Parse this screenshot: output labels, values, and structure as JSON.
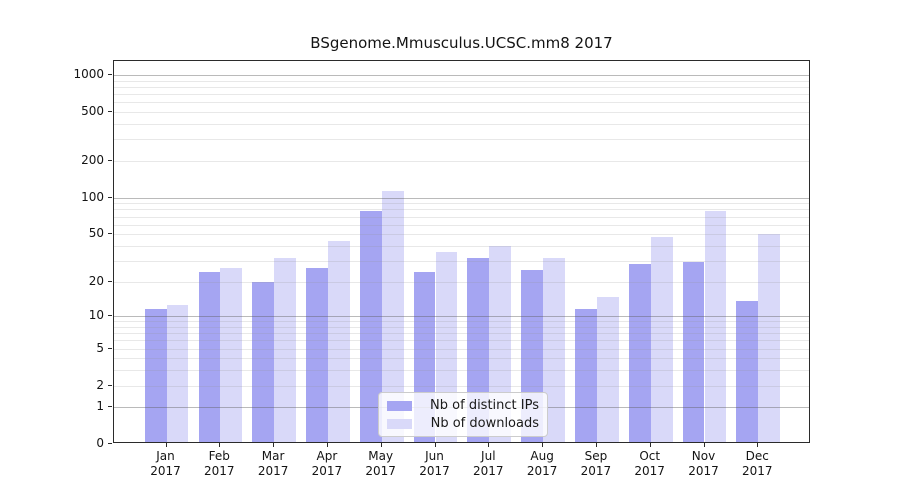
{
  "figure": {
    "background_color": "#ffffff",
    "text_color": "#141414"
  },
  "chart_data": {
    "type": "bar",
    "title": "BSgenome.Mmusculus.UCSC.mm8 2017",
    "categories": [
      "Jan",
      "Feb",
      "Mar",
      "Apr",
      "May",
      "Jun",
      "Jul",
      "Aug",
      "Sep",
      "Oct",
      "Nov",
      "Dec"
    ],
    "category_year_label": "2017",
    "series": [
      {
        "name": "Nb of distinct IPs",
        "color": "#a5a5f2",
        "values": [
          11,
          23,
          19,
          25,
          75,
          23,
          30,
          24,
          11,
          27,
          28,
          13
        ]
      },
      {
        "name": "Nb of downloads",
        "color": "#d9d9f9",
        "values": [
          12,
          25,
          30,
          42,
          108,
          34,
          38,
          30,
          14,
          45,
          75,
          48
        ]
      }
    ],
    "xlabel": "",
    "ylabel": "",
    "y_scale": "log1p",
    "ylim": [
      0,
      1300
    ],
    "y_ticks": [
      0,
      1,
      2,
      5,
      10,
      20,
      50,
      100,
      200,
      500,
      1000
    ],
    "y_major_gridlines": [
      1,
      10,
      100,
      1000
    ],
    "grid": "horizontal gridlines drawn over bars; minor log gridlines at 2-9 per decade",
    "legend_position": "inside lower center",
    "gridline_major_color": "#b4b4b4",
    "gridline_minor_color": "#e5e5e5"
  }
}
